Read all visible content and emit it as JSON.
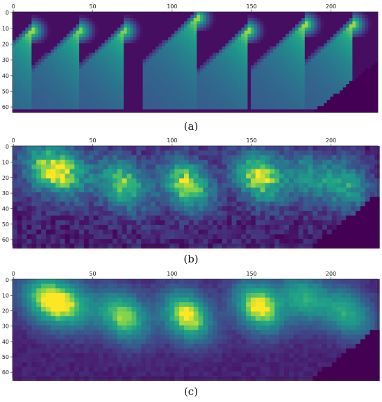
{
  "chart_data": [
    {
      "type": "heatmap",
      "label": "a",
      "colormap": "viridis",
      "rows": 64,
      "cols": 230,
      "xlim": [
        0,
        229
      ],
      "ylim": [
        0,
        63
      ],
      "x_ticks": [
        0,
        50,
        100,
        150,
        200
      ],
      "y_ticks": [
        0,
        10,
        20,
        30,
        40,
        50,
        60
      ],
      "style": "smooth-wedges",
      "peaks": [
        {
          "x": 12,
          "y": 12,
          "intensity": 0.95
        },
        {
          "x": 42,
          "y": 12,
          "intensity": 0.92
        },
        {
          "x": 70,
          "y": 12,
          "intensity": 0.92
        },
        {
          "x": 116,
          "y": 4,
          "intensity": 0.95
        },
        {
          "x": 148,
          "y": 12,
          "intensity": 0.95
        },
        {
          "x": 184,
          "y": 8,
          "intensity": 0.95
        },
        {
          "x": 214,
          "y": 8,
          "intensity": 0.95
        }
      ]
    },
    {
      "type": "heatmap",
      "label": "b",
      "colormap": "viridis",
      "rows": 64,
      "cols": 230,
      "xlim": [
        0,
        229
      ],
      "ylim": [
        0,
        63
      ],
      "x_ticks": [
        0,
        50,
        100,
        150,
        200
      ],
      "y_ticks": [
        0,
        10,
        20,
        30,
        40,
        50,
        60
      ],
      "style": "noisy-blobs",
      "peaks": [
        {
          "x": 20,
          "y": 15,
          "intensity": 0.6
        },
        {
          "x": 35,
          "y": 17,
          "intensity": 0.55
        },
        {
          "x": 70,
          "y": 25,
          "intensity": 0.75
        },
        {
          "x": 110,
          "y": 25,
          "intensity": 0.85
        },
        {
          "x": 155,
          "y": 20,
          "intensity": 0.85
        },
        {
          "x": 185,
          "y": 20,
          "intensity": 0.45
        },
        {
          "x": 210,
          "y": 25,
          "intensity": 0.55
        }
      ]
    },
    {
      "type": "heatmap",
      "label": "c",
      "colormap": "viridis",
      "rows": 64,
      "cols": 230,
      "xlim": [
        0,
        229
      ],
      "ylim": [
        0,
        63
      ],
      "x_ticks": [
        0,
        50,
        100,
        150,
        200
      ],
      "y_ticks": [
        0,
        10,
        20,
        30,
        40,
        50,
        60
      ],
      "style": "denoised-blobs",
      "peaks": [
        {
          "x": 20,
          "y": 14,
          "intensity": 0.7
        },
        {
          "x": 37,
          "y": 16,
          "intensity": 0.6
        },
        {
          "x": 70,
          "y": 24,
          "intensity": 0.8
        },
        {
          "x": 110,
          "y": 24,
          "intensity": 0.9
        },
        {
          "x": 155,
          "y": 18,
          "intensity": 0.9
        },
        {
          "x": 184,
          "y": 12,
          "intensity": 0.6
        },
        {
          "x": 212,
          "y": 22,
          "intensity": 0.6
        }
      ]
    }
  ],
  "captions": [
    "(a)",
    "(b)",
    "(c)"
  ]
}
